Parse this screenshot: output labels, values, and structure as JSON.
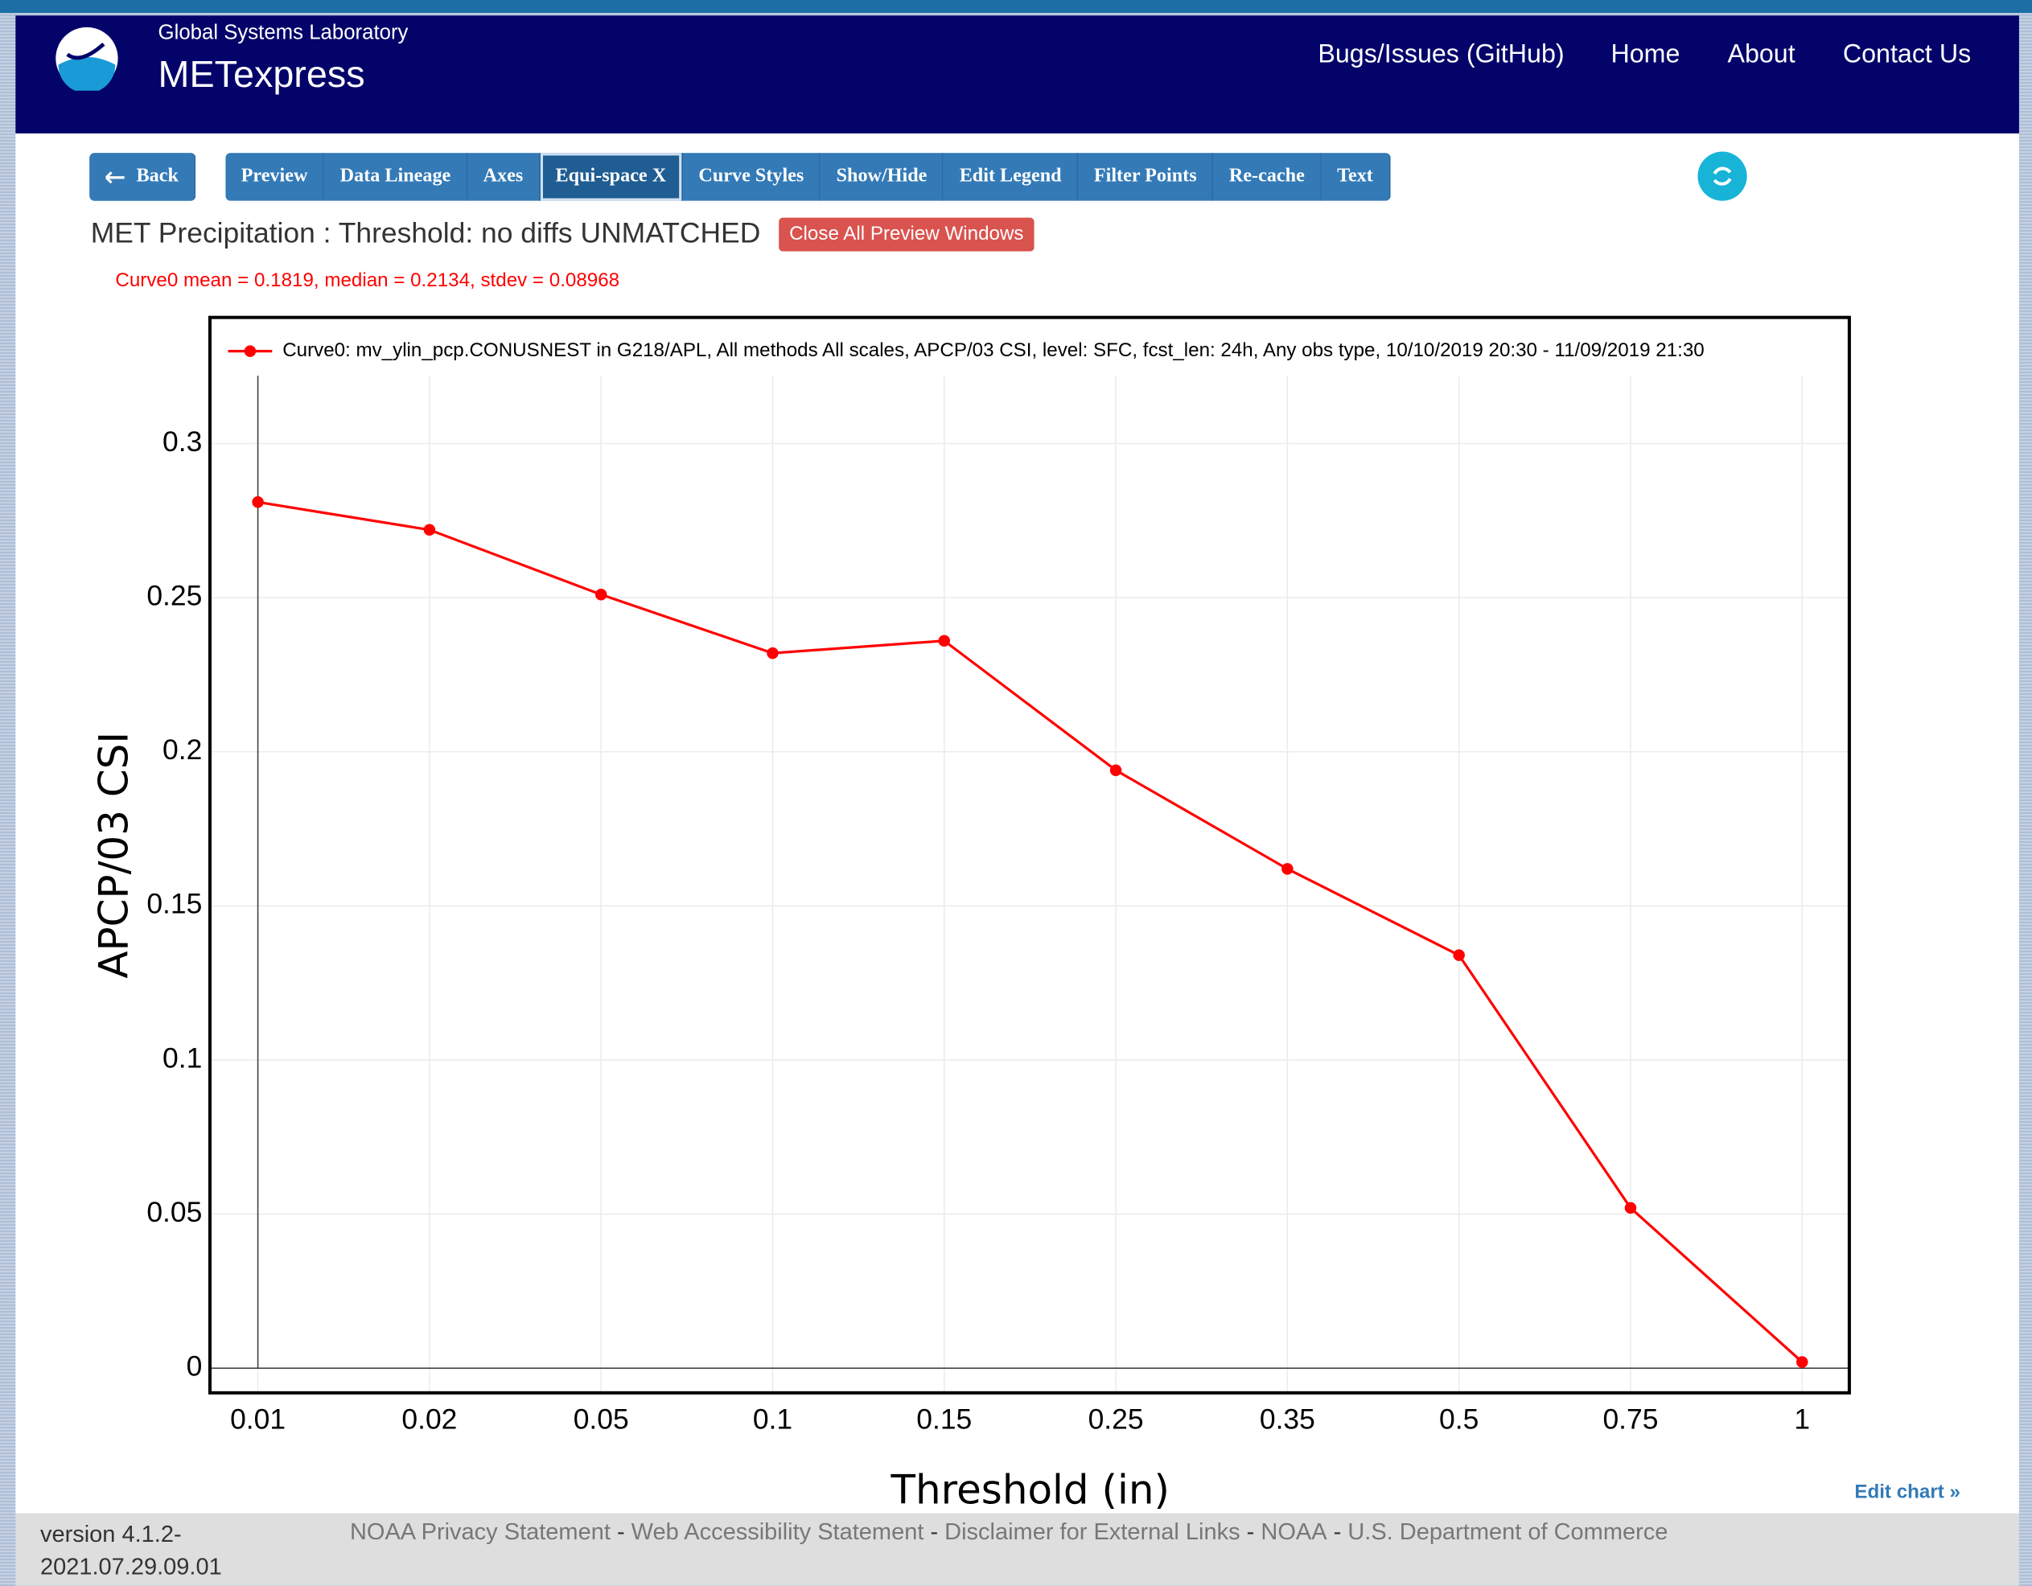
{
  "header": {
    "org": "Global Systems Laboratory",
    "app": "METexpress",
    "nav": [
      "Bugs/Issues (GitHub)",
      "Home",
      "About",
      "Contact Us"
    ]
  },
  "toolbar": {
    "back": "Back",
    "buttons": [
      "Preview",
      "Data Lineage",
      "Axes",
      "Equi-space X",
      "Curve Styles",
      "Show/Hide",
      "Edit Legend",
      "Filter Points",
      "Re-cache",
      "Text"
    ]
  },
  "page_title": "MET Precipitation : Threshold: no diffs UNMATCHED",
  "close_button": "Close All Preview Windows",
  "stats": "Curve0 mean = 0.1819, median = 0.2134, stdev = 0.08968",
  "chart_data": {
    "type": "line",
    "x_label": "Threshold (in)",
    "y_label": "APCP/03 CSI",
    "categories": [
      "0.01",
      "0.02",
      "0.05",
      "0.1",
      "0.15",
      "0.25",
      "0.35",
      "0.5",
      "0.75",
      "1"
    ],
    "series": [
      {
        "name": "Curve0: mv_ylin_pcp.CONUSNEST in G218/APL, All methods All scales, APCP/03 CSI, level: SFC, fcst_len: 24h, Any obs type, 10/10/2019 20:30 - 11/09/2019 21:30",
        "color": "#ff0000",
        "values": [
          0.281,
          0.272,
          0.251,
          0.232,
          0.236,
          0.194,
          0.162,
          0.134,
          0.052,
          0.002
        ]
      }
    ],
    "ylim": [
      -0.008,
      0.322
    ],
    "yticks": [
      0,
      0.05,
      0.1,
      0.15,
      0.2,
      0.25,
      0.3
    ],
    "grid": true
  },
  "edit_chart": "Edit chart »",
  "footer": {
    "version": "version 4.1.2-2021.07.29.09.01",
    "links": [
      "NOAA Privacy Statement",
      "Web Accessibility Statement",
      "Disclaimer for External Links",
      "NOAA",
      "U.S. Department of Commerce"
    ],
    "separator": "-"
  }
}
